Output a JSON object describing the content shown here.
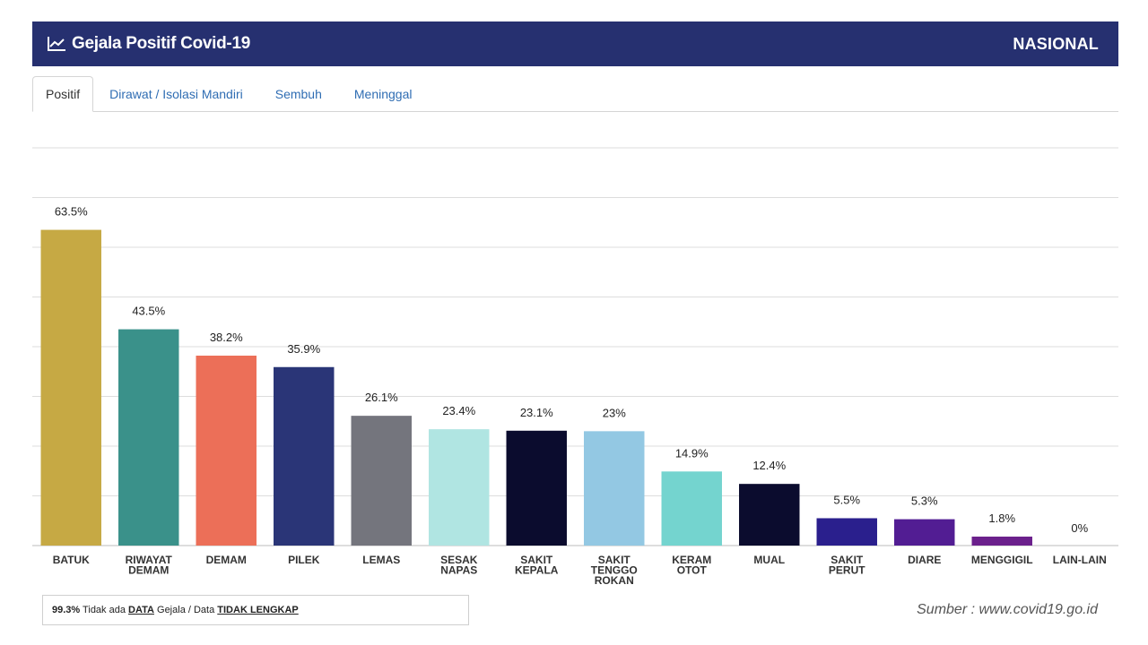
{
  "header": {
    "title": "Gejala Positif Covid-19",
    "icon": "line-chart-icon",
    "region": "NASIONAL",
    "background": "#263070"
  },
  "tabs": [
    {
      "label": "Positif",
      "active": true
    },
    {
      "label": "Dirawat / Isolasi Mandiri",
      "active": false
    },
    {
      "label": "Sembuh",
      "active": false
    },
    {
      "label": "Meninggal",
      "active": false
    }
  ],
  "chart_data": {
    "type": "bar",
    "categories": [
      "BATUK",
      "RIWAYAT DEMAM",
      "DEMAM",
      "PILEK",
      "LEMAS",
      "SESAK NAPAS",
      "SAKIT KEPALA",
      "SAKIT TENGGO ROKAN",
      "KERAM OTOT",
      "MUAL",
      "SAKIT PERUT",
      "DIARE",
      "MENGGIGIL",
      "LAIN-LAIN"
    ],
    "category_lines": [
      [
        "BATUK"
      ],
      [
        "RIWAYAT",
        "DEMAM"
      ],
      [
        "DEMAM"
      ],
      [
        "PILEK"
      ],
      [
        "LEMAS"
      ],
      [
        "SESAK",
        "NAPAS"
      ],
      [
        "SAKIT",
        "KEPALA"
      ],
      [
        "SAKIT",
        "TENGGO",
        "ROKAN"
      ],
      [
        "KERAM",
        "OTOT"
      ],
      [
        "MUAL"
      ],
      [
        "SAKIT",
        "PERUT"
      ],
      [
        "DIARE"
      ],
      [
        "MENGGIGIL"
      ],
      [
        "LAIN-LAIN"
      ]
    ],
    "values": [
      63.5,
      43.5,
      38.2,
      35.9,
      26.1,
      23.4,
      23.1,
      23,
      14.9,
      12.4,
      5.5,
      5.3,
      1.8,
      0
    ],
    "value_labels": [
      "63.5%",
      "43.5%",
      "38.2%",
      "35.9%",
      "26.1%",
      "23.4%",
      "23.1%",
      "23%",
      "14.9%",
      "12.4%",
      "5.5%",
      "5.3%",
      "1.8%",
      "0%"
    ],
    "colors": [
      "#c6a944",
      "#3a918a",
      "#ec6f58",
      "#2a3577",
      "#74757d",
      "#b0e5e2",
      "#0b0c2e",
      "#93c8e3",
      "#74d4cf",
      "#0b0c2e",
      "#2a1f8d",
      "#521d93",
      "#6b208c",
      "#bbbbbb"
    ],
    "ylim": [
      0,
      80
    ],
    "grid": true,
    "legend": "none"
  },
  "footnote": {
    "pct": "99.3%",
    "t1": " Tidak ada ",
    "u1": "DATA",
    "t2": " Gejala / Data ",
    "u2": "TIDAK LENGKAP"
  },
  "source": "Sumber : www.covid19.go.id"
}
